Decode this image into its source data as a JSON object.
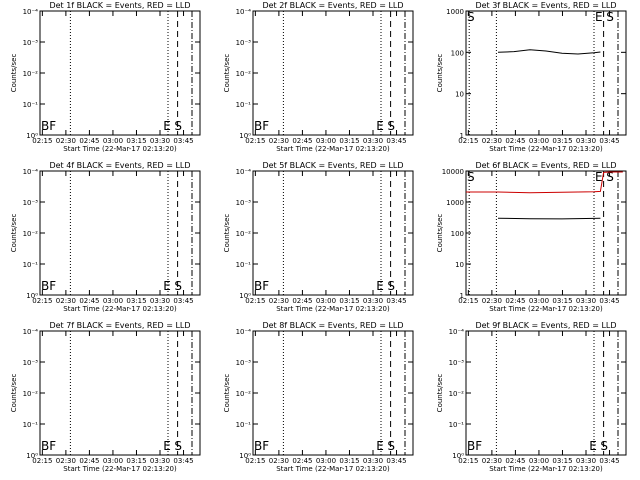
{
  "chart_data": [
    {
      "type": "line",
      "title": "Det 1f BLACK = Events, RED = LLD",
      "xlabel": "Start Time (22-Mar-17 02:13:20)",
      "ylabel": "Counts/sec",
      "xticks": [
        "02:15",
        "02:30",
        "02:45",
        "03:00",
        "03:15",
        "03:30",
        "03:45"
      ],
      "ytick_style": "exp",
      "markers": [
        "BF",
        "E",
        "S"
      ],
      "series": []
    },
    {
      "type": "line",
      "title": "Det 2f BLACK = Events, RED = LLD",
      "xlabel": "Start Time (22-Mar-17 02:13:20)",
      "ylabel": "Counts/sec",
      "xticks": [
        "02:15",
        "02:30",
        "02:45",
        "03:00",
        "03:15",
        "03:30",
        "03:45"
      ],
      "ytick_style": "exp",
      "markers": [
        "BF",
        "E",
        "S"
      ],
      "series": []
    },
    {
      "type": "line",
      "title": "Det 3f BLACK = Events, RED = LLD",
      "xlabel": "Start Time (22-Mar-17 02:13:20)",
      "ylabel": "Counts/sec",
      "xticks": [
        "02:15",
        "02:30",
        "02:45",
        "03:00",
        "03:15",
        "03:30",
        "03:45"
      ],
      "ytick_style": "num",
      "markers": [
        "S",
        "E",
        "S"
      ],
      "series": [
        {
          "color": "#000000",
          "x": [
            0.2,
            0.3,
            0.4,
            0.5,
            0.6,
            0.7,
            0.8,
            0.84
          ],
          "y": [
            100,
            104,
            115,
            108,
            95,
            91,
            98,
            102
          ]
        }
      ]
    },
    {
      "type": "line",
      "title": "Det 4f BLACK = Events, RED = LLD",
      "xlabel": "Start Time (22-Mar-17 02:13:20)",
      "ylabel": "Counts/sec",
      "xticks": [
        "02:15",
        "02:30",
        "02:45",
        "03:00",
        "03:15",
        "03:30",
        "03:45"
      ],
      "ytick_style": "exp",
      "markers": [
        "BF",
        "E",
        "S"
      ],
      "series": []
    },
    {
      "type": "line",
      "title": "Det 5f BLACK = Events, RED = LLD",
      "xlabel": "Start Time (22-Mar-17 02:13:20)",
      "ylabel": "Counts/sec",
      "xticks": [
        "02:15",
        "02:30",
        "02:45",
        "03:00",
        "03:15",
        "03:30",
        "03:45"
      ],
      "ytick_style": "exp",
      "markers": [
        "BF",
        "E",
        "S"
      ],
      "series": []
    },
    {
      "type": "line",
      "title": "Det 6f BLACK = Events, RED = LLD",
      "xlabel": "Start Time (22-Mar-17 02:13:20)",
      "ylabel": "Counts/sec",
      "xticks": [
        "02:15",
        "02:30",
        "02:45",
        "03:00",
        "03:15",
        "03:30",
        "03:45"
      ],
      "ytick_style": "num",
      "markers": [
        "S",
        "E",
        "S"
      ],
      "series": [
        {
          "color": "#cc0000",
          "x": [
            0.0,
            0.2,
            0.4,
            0.6,
            0.8,
            0.84,
            0.86,
            0.9,
            0.98
          ],
          "y": [
            2100,
            2100,
            2000,
            2050,
            2150,
            2200,
            9000,
            9300,
            9300
          ]
        },
        {
          "color": "#000000",
          "x": [
            0.2,
            0.4,
            0.6,
            0.8,
            0.84
          ],
          "y": [
            300,
            290,
            285,
            295,
            300
          ]
        }
      ]
    },
    {
      "type": "line",
      "title": "Det 7f BLACK = Events, RED = LLD",
      "xlabel": "Start Time (22-Mar-17 02:13:20)",
      "ylabel": "Counts/sec",
      "xticks": [
        "02:15",
        "02:30",
        "02:45",
        "03:00",
        "03:15",
        "03:30",
        "03:45"
      ],
      "ytick_style": "exp",
      "markers": [
        "BF",
        "E",
        "S"
      ],
      "series": []
    },
    {
      "type": "line",
      "title": "Det 8f BLACK = Events, RED = LLD",
      "xlabel": "Start Time (22-Mar-17 02:13:20)",
      "ylabel": "Counts/sec",
      "xticks": [
        "02:15",
        "02:30",
        "02:45",
        "03:00",
        "03:15",
        "03:30",
        "03:45"
      ],
      "ytick_style": "exp",
      "markers": [
        "BF",
        "E",
        "S"
      ],
      "series": []
    },
    {
      "type": "line",
      "title": "Det 9f BLACK = Events, RED = LLD",
      "xlabel": "Start Time (22-Mar-17 02:13:20)",
      "ylabel": "Counts/sec",
      "xticks": [
        "02:15",
        "02:30",
        "02:45",
        "03:00",
        "03:15",
        "03:30",
        "03:45"
      ],
      "ytick_style": "exp",
      "markers": [
        "BF",
        "E",
        "S"
      ],
      "series": []
    }
  ]
}
